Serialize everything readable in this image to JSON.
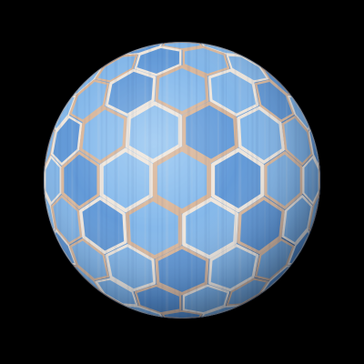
{
  "scene": {
    "subject": "hexagon-tiled-sphere",
    "background_color": "#000000",
    "colors": {
      "tile_light": "#8fc0ee",
      "tile_mid": "#5f97d6",
      "tile_dark": "#2f5f9c",
      "grout_light": "#efe6dc",
      "grout_warm": "#d9b69a",
      "shadow": "#16304f"
    }
  }
}
